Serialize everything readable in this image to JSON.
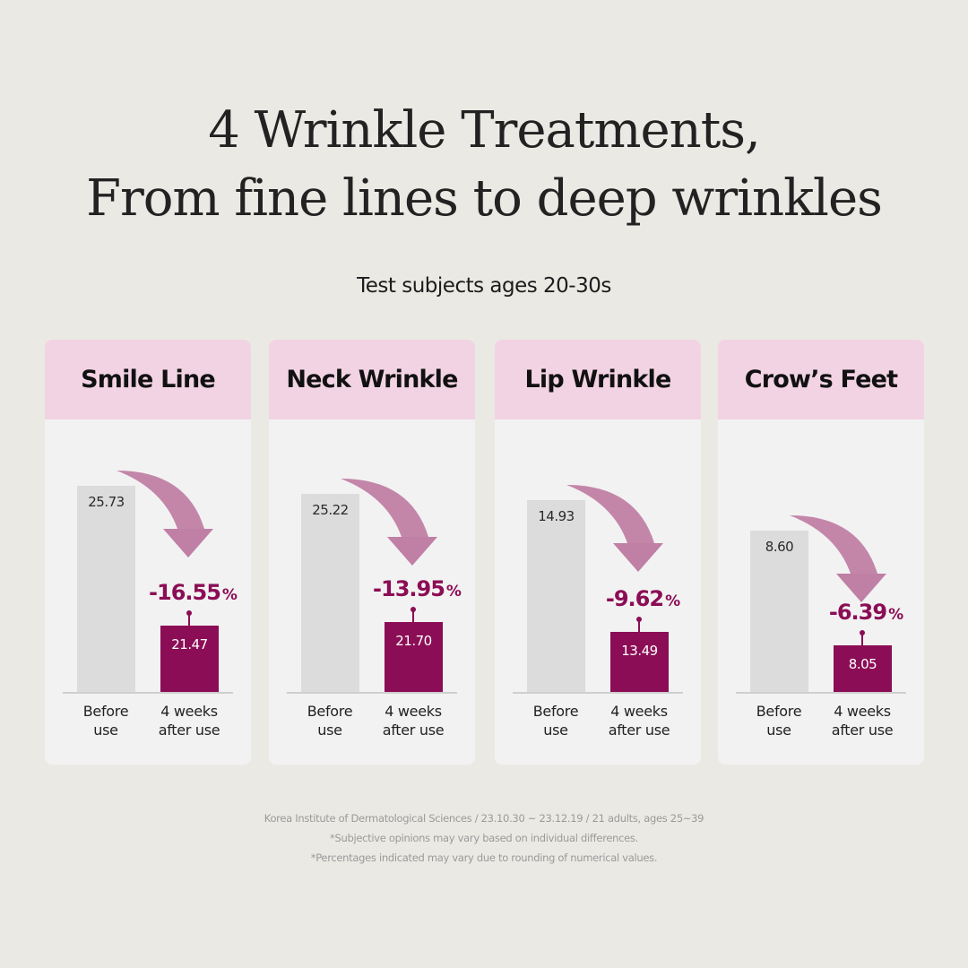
{
  "header": {
    "title_line1": "4 Wrinkle Treatments,",
    "title_line2": "From fine lines to deep wrinkles",
    "subtitle": "Test subjects ages 20-30s"
  },
  "colors": {
    "background": "#ebe9e4",
    "card": "#f2f2f2",
    "card_header": "#f2d3e3",
    "before_bar": "#dcdcdc",
    "after_bar": "#8b0d55",
    "arrow": "#c07fa4",
    "percent_text": "#8b0d55"
  },
  "chart_data": [
    {
      "type": "bar",
      "title": "Smile Line",
      "categories": [
        "Before use",
        "4 weeks after use"
      ],
      "values": [
        25.73,
        21.47
      ],
      "value_labels": [
        "25.73",
        "21.47"
      ],
      "change": "-16.55",
      "unit": "%"
    },
    {
      "type": "bar",
      "title": "Neck Wrinkle",
      "categories": [
        "Before use",
        "4 weeks after use"
      ],
      "values": [
        25.22,
        21.7
      ],
      "value_labels": [
        "25.22",
        "21.70"
      ],
      "change": "-13.95",
      "unit": "%"
    },
    {
      "type": "bar",
      "title": "Lip Wrinkle",
      "categories": [
        "Before use",
        "4 weeks after use"
      ],
      "values": [
        14.93,
        13.49
      ],
      "value_labels": [
        "14.93",
        "13.49"
      ],
      "change": "-9.62",
      "unit": "%"
    },
    {
      "type": "bar",
      "title": "Crow’s Feet",
      "categories": [
        "Before use",
        "4 weeks after use"
      ],
      "values": [
        8.6,
        8.05
      ],
      "value_labels": [
        "8.60",
        "8.05"
      ],
      "change": "-6.39",
      "unit": "%"
    }
  ],
  "labels": {
    "before_line1": "Before",
    "before_line2": "use",
    "after_line1": "4 weeks",
    "after_line2": "after use"
  },
  "footnotes": [
    "Korea Institute of Dermatological Sciences / 23.10.30 ~ 23.12.19 / 21 adults, ages 25~39",
    "*Subjective opinions may vary based on individual differences.",
    "*Percentages indicated may vary due to rounding of numerical values."
  ]
}
